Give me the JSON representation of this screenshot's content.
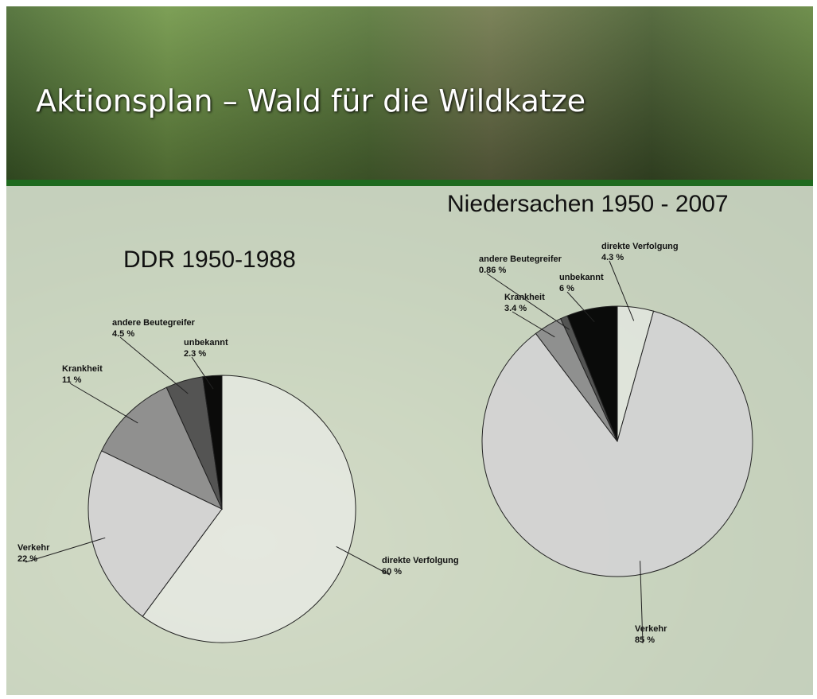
{
  "header": {
    "title": "Aktionsplan – Wald für die Wildkatze"
  },
  "chart_data": [
    {
      "type": "pie",
      "title": "DDR 1950-1988",
      "categories": [
        "direkte Verfolgung",
        "Verkehr",
        "Krankheit",
        "andere Beutegreifer",
        "unbekannt"
      ],
      "values": [
        60,
        22,
        11,
        4.5,
        2.3
      ],
      "value_labels": [
        "60 %",
        "22 %",
        "11 %",
        "4.5 %",
        "2.3 %"
      ],
      "colors": [
        "#f2f2f2",
        "#d3d3d3",
        "#8c8c8c",
        "#4d4d4d",
        "#000000"
      ]
    },
    {
      "type": "pie",
      "title": "Niedersachen 1950 - 2007",
      "categories": [
        "direkte Verfolgung",
        "Verkehr",
        "Krankheit",
        "andere Beutegreifer",
        "unbekannt"
      ],
      "values": [
        4.3,
        85,
        3.4,
        0.86,
        6
      ],
      "value_labels": [
        "4.3 %",
        "85 %",
        "3.4 %",
        "0.86 %",
        "6 %"
      ],
      "colors": [
        "#f2f2f2",
        "#d3d3d3",
        "#8c8c8c",
        "#4d4d4d",
        "#000000"
      ]
    }
  ]
}
